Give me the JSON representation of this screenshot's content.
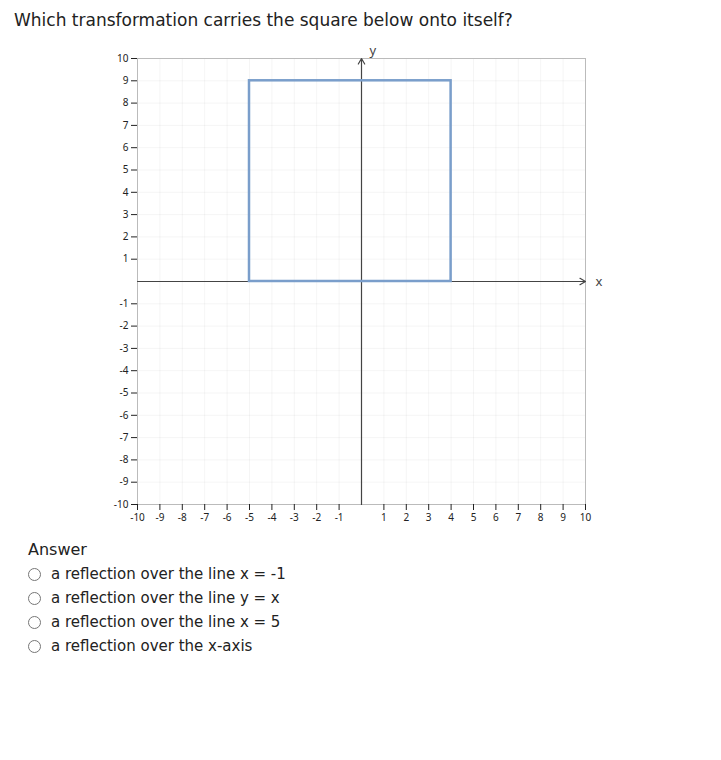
{
  "chart_data": {
    "type": "rect",
    "title": "Which transformation carries the square below onto itself?",
    "x_label": "x",
    "y_label": "y",
    "x1": -5,
    "y1": 0,
    "x2": 4,
    "y2": 9,
    "color": "#7a9ecb",
    "xlim": [
      -10,
      10
    ],
    "ylim": [
      -10,
      10
    ],
    "xticks": [
      -10,
      -9,
      -8,
      -7,
      -6,
      -5,
      -4,
      -3,
      -2,
      -1,
      1,
      2,
      3,
      4,
      5,
      6,
      7,
      8,
      9,
      10
    ],
    "yticks": [
      -10,
      -9,
      -8,
      -7,
      -6,
      -5,
      -4,
      -3,
      -2,
      -1,
      1,
      2,
      3,
      4,
      5,
      6,
      7,
      8,
      9,
      10
    ],
    "grid": true,
    "answer_label": "Answer",
    "options": [
      "a reflection over the line x = -1",
      "a reflection over the line y = x",
      "a reflection over the line x = 5",
      "a reflection over the x-axis"
    ]
  }
}
